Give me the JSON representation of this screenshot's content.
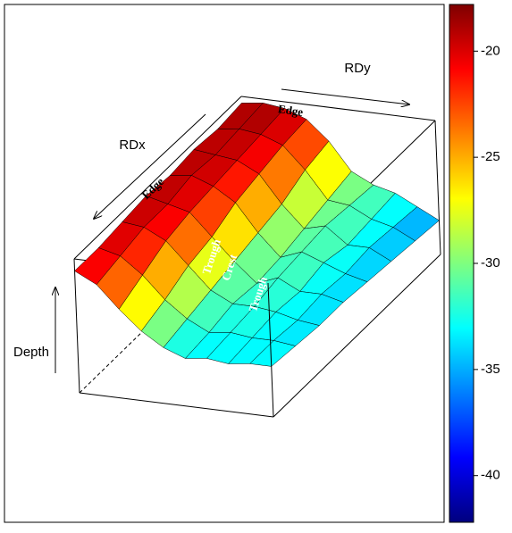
{
  "chart_data": {
    "type": "surface",
    "x_label": "RDy",
    "y_label": "RDx",
    "z_label": "Depth",
    "annotations": [
      "Edge",
      "Edge",
      "Trough",
      "Crest",
      "Trough"
    ],
    "z": [
      [
        -19,
        -18.5,
        -19,
        -20.5,
        -24,
        -29,
        -31,
        -32,
        -34,
        -36
      ],
      [
        -19.5,
        -19,
        -19.5,
        -21,
        -25,
        -30,
        -30.5,
        -32.5,
        -33.5,
        -35.5
      ],
      [
        -19,
        -19.5,
        -20,
        -22,
        -27,
        -31,
        -30,
        -33,
        -33,
        -35
      ],
      [
        -19.5,
        -19,
        -20.5,
        -23,
        -28,
        -32,
        -30.5,
        -32,
        -33.5,
        -34.5
      ],
      [
        -19,
        -20,
        -21,
        -25,
        -29,
        -32.5,
        -31,
        -33,
        -33,
        -34
      ],
      [
        -19.5,
        -20,
        -22,
        -26,
        -30,
        -32,
        -32,
        -32.5,
        -33.5,
        -34
      ],
      [
        -20,
        -21,
        -24,
        -28,
        -31,
        -33,
        -32.5,
        -33,
        -33,
        -33.5
      ],
      [
        -20,
        -22,
        -26,
        -29.5,
        -32,
        -33.5,
        -33,
        -33.5,
        -33,
        -33
      ]
    ],
    "zlim": [
      -42.2,
      -17.8
    ],
    "zticks": [
      -20,
      -25,
      -30,
      -35,
      -40
    ],
    "colormap": [
      "#00007f",
      "#0000ff",
      "#007fff",
      "#00ffff",
      "#7fff7f",
      "#ffff00",
      "#ff7f00",
      "#ff0000",
      "#7f0000"
    ]
  }
}
